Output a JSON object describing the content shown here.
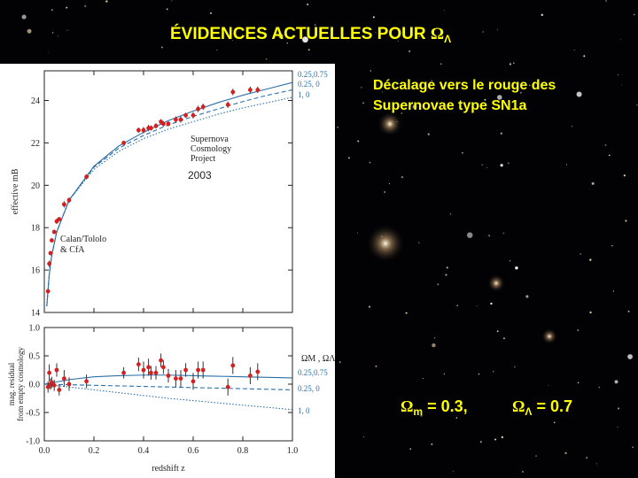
{
  "slide": {
    "title": {
      "text": "ÉVIDENCES ACTUELLES POUR",
      "symbol": "Ω",
      "sub": "Λ"
    },
    "subtitle": [
      "Décalage vers le rouge des",
      "Supernovae type SN1a"
    ],
    "params": [
      {
        "symbol": "Ω",
        "sub": "m",
        "text": "= 0.3,"
      },
      {
        "symbol": "Ω",
        "sub": "Λ",
        "text": "= 0.7"
      }
    ]
  },
  "chart_data": [
    {
      "type": "scatter",
      "y_label": "effective mB",
      "annotations": [
        "Supernova",
        "Cosmology",
        "Project",
        "2003",
        "Calan/Tololo",
        "& CfA"
      ],
      "xlim": [
        0,
        1
      ],
      "ylim": [
        14,
        25.4
      ],
      "xticks": [
        0,
        0.2,
        0.4,
        0.6,
        0.8,
        1
      ],
      "yticks": [
        14,
        16,
        18,
        20,
        22,
        24
      ],
      "x": [
        0.01,
        0.02,
        0.03,
        0.05,
        0.1,
        0.2,
        0.3,
        0.4,
        0.5,
        0.6,
        0.7,
        0.8,
        0.9,
        1
      ],
      "series": [
        {
          "name": "0.25,0.75",
          "color": "#2a6fa8",
          "dash": "none",
          "values": [
            14.3,
            15.8,
            16.7,
            17.8,
            19.3,
            20.9,
            21.85,
            22.5,
            23.05,
            23.5,
            23.9,
            24.25,
            24.55,
            24.85
          ]
        },
        {
          "name": "0.25, 0",
          "color": "#2a6fa8",
          "dash": "5 3",
          "values": [
            14.3,
            15.8,
            16.7,
            17.8,
            19.3,
            20.85,
            21.75,
            22.35,
            22.85,
            23.25,
            23.6,
            23.95,
            24.25,
            24.5
          ]
        },
        {
          "name": "1,   0",
          "color": "#2a6fa8",
          "dash": "1.5 2",
          "values": [
            14.3,
            15.8,
            16.7,
            17.8,
            19.3,
            20.75,
            21.6,
            22.2,
            22.65,
            23.0,
            23.35,
            23.65,
            23.9,
            24.15
          ]
        }
      ],
      "points": {
        "color": "#d42020",
        "x": [
          0.015,
          0.02,
          0.025,
          0.03,
          0.04,
          0.05,
          0.06,
          0.08,
          0.1,
          0.17,
          0.32,
          0.38,
          0.4,
          0.42,
          0.43,
          0.45,
          0.47,
          0.48,
          0.5,
          0.53,
          0.55,
          0.57,
          0.6,
          0.62,
          0.64,
          0.74,
          0.76,
          0.83,
          0.86
        ],
        "values": [
          15.0,
          16.3,
          16.8,
          17.4,
          17.8,
          18.3,
          18.4,
          19.1,
          19.3,
          20.4,
          22.0,
          22.6,
          22.6,
          22.7,
          22.7,
          22.8,
          23.0,
          22.9,
          22.9,
          23.1,
          23.1,
          23.3,
          23.3,
          23.6,
          23.7,
          23.8,
          24.4,
          24.5,
          24.5
        ],
        "errors": [
          0.1,
          0.15,
          0.1,
          0.1,
          0.1,
          0.12,
          0.1,
          0.15,
          0.12,
          0.12,
          0.1,
          0.12,
          0.15,
          0.15,
          0.12,
          0.12,
          0.12,
          0.12,
          0.12,
          0.15,
          0.15,
          0.12,
          0.15,
          0.15,
          0.15,
          0.15,
          0.15,
          0.15,
          0.15
        ]
      }
    },
    {
      "type": "scatter",
      "x_label": "redshift z",
      "y_label": [
        "mag. residual",
        "from empty cosmology"
      ],
      "legend_title": "ΩM , ΩΛ",
      "xlim": [
        0,
        1
      ],
      "ylim": [
        -1,
        1
      ],
      "xticks": [
        {
          "value": 0,
          "label": "0.0"
        },
        0.2,
        0.4,
        0.6,
        0.8,
        {
          "value": 1,
          "label": "1.0"
        }
      ],
      "yticks": [
        {
          "value": -1,
          "label": "-1.0"
        },
        -0.5,
        {
          "value": 0,
          "label": "0.0"
        },
        0.5,
        {
          "value": 1,
          "label": "1.0"
        }
      ],
      "x": [
        0,
        0.1,
        0.2,
        0.3,
        0.4,
        0.5,
        0.6,
        0.7,
        0.8,
        0.9,
        1
      ],
      "series": [
        {
          "name": "0.25,0.75",
          "color": "#2a6fa8",
          "dash": "none",
          "values": [
            0,
            0.08,
            0.13,
            0.15,
            0.16,
            0.16,
            0.15,
            0.14,
            0.13,
            0.12,
            0.11
          ]
        },
        {
          "name": "0.25, 0",
          "color": "#2a6fa8",
          "dash": "5 3",
          "values": [
            0,
            -0.01,
            -0.02,
            -0.03,
            -0.04,
            -0.05,
            -0.06,
            -0.07,
            -0.08,
            -0.09,
            -0.1
          ]
        },
        {
          "name": "1,   0",
          "color": "#2a6fa8",
          "dash": "1.5 2",
          "values": [
            0,
            -0.05,
            -0.1,
            -0.15,
            -0.2,
            -0.25,
            -0.29,
            -0.33,
            -0.37,
            -0.41,
            -0.45
          ]
        }
      ],
      "points": {
        "color": "#d42020",
        "x": [
          0.015,
          0.02,
          0.025,
          0.03,
          0.04,
          0.05,
          0.06,
          0.08,
          0.1,
          0.17,
          0.32,
          0.38,
          0.4,
          0.42,
          0.43,
          0.45,
          0.47,
          0.48,
          0.5,
          0.53,
          0.55,
          0.57,
          0.6,
          0.62,
          0.64,
          0.74,
          0.76,
          0.83,
          0.86
        ],
        "values": [
          -0.05,
          0.2,
          0.0,
          0.03,
          -0.02,
          0.25,
          -0.1,
          0.1,
          0.0,
          0.05,
          0.2,
          0.35,
          0.25,
          0.3,
          0.2,
          0.2,
          0.42,
          0.3,
          0.15,
          0.1,
          0.1,
          0.25,
          0.05,
          0.25,
          0.25,
          -0.05,
          0.33,
          0.15,
          0.22
        ],
        "errors": [
          0.1,
          0.15,
          0.1,
          0.1,
          0.1,
          0.12,
          0.1,
          0.15,
          0.12,
          0.12,
          0.1,
          0.12,
          0.15,
          0.15,
          0.12,
          0.12,
          0.12,
          0.12,
          0.12,
          0.15,
          0.15,
          0.12,
          0.15,
          0.15,
          0.15,
          0.15,
          0.15,
          0.15,
          0.15
        ]
      }
    }
  ]
}
